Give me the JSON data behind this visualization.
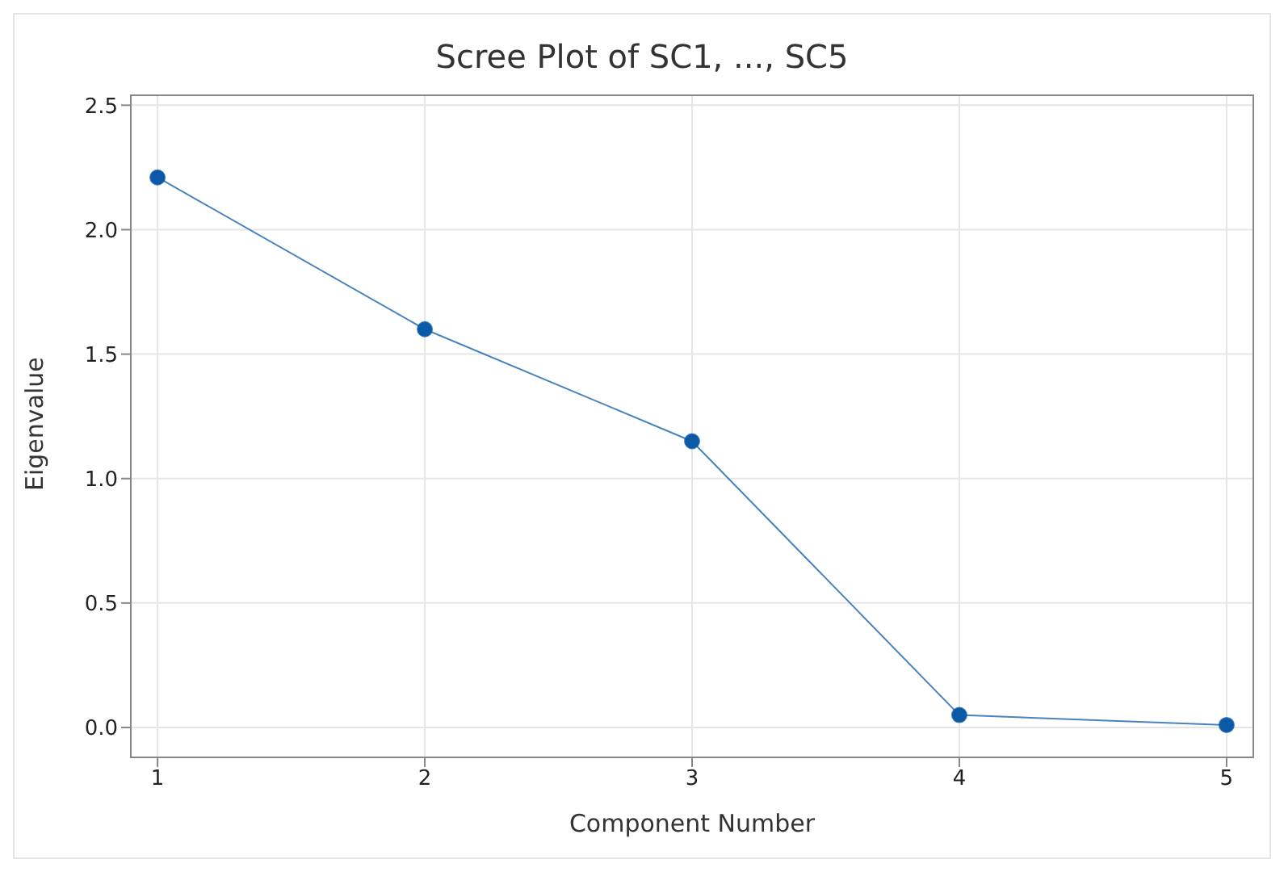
{
  "chart_data": {
    "type": "line",
    "title": "Scree Plot of SC1, ..., SC5",
    "xlabel": "Component Number",
    "ylabel": "Eigenvalue",
    "x": [
      1,
      2,
      3,
      4,
      5
    ],
    "series": [
      {
        "color": "#0b5aa8",
        "values": [
          2.21,
          1.6,
          1.15,
          0.05,
          0.01
        ]
      }
    ],
    "xlim": [
      0.9,
      5.1
    ],
    "xticks": [
      1,
      2,
      3,
      4,
      5
    ],
    "ylim": [
      -0.12,
      2.54
    ],
    "yticks": [
      {
        "value": 0,
        "label": "0.0"
      },
      {
        "value": 0.5,
        "label": "0.5"
      },
      {
        "value": 1,
        "label": "1.0"
      },
      {
        "value": 1.5,
        "label": "1.5"
      },
      {
        "value": 2,
        "label": "2.0"
      },
      {
        "value": 2.5,
        "label": "2.5"
      }
    ],
    "grid": true,
    "marker": "circle",
    "line_style": "solid",
    "legend": false
  }
}
